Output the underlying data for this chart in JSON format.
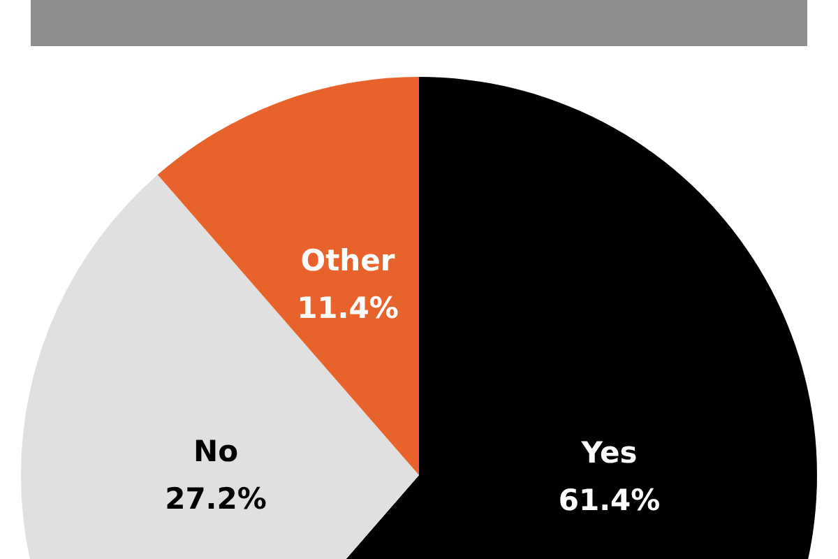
{
  "chart_data": {
    "type": "pie",
    "categories": [
      "Yes",
      "No",
      "Other"
    ],
    "values": [
      61.4,
      27.2,
      11.4
    ],
    "colors": [
      "#000000",
      "#e0e0e0",
      "#e8622c"
    ],
    "value_labels": [
      "61.4%",
      "27.2%",
      "11.4%"
    ],
    "legend": false
  }
}
